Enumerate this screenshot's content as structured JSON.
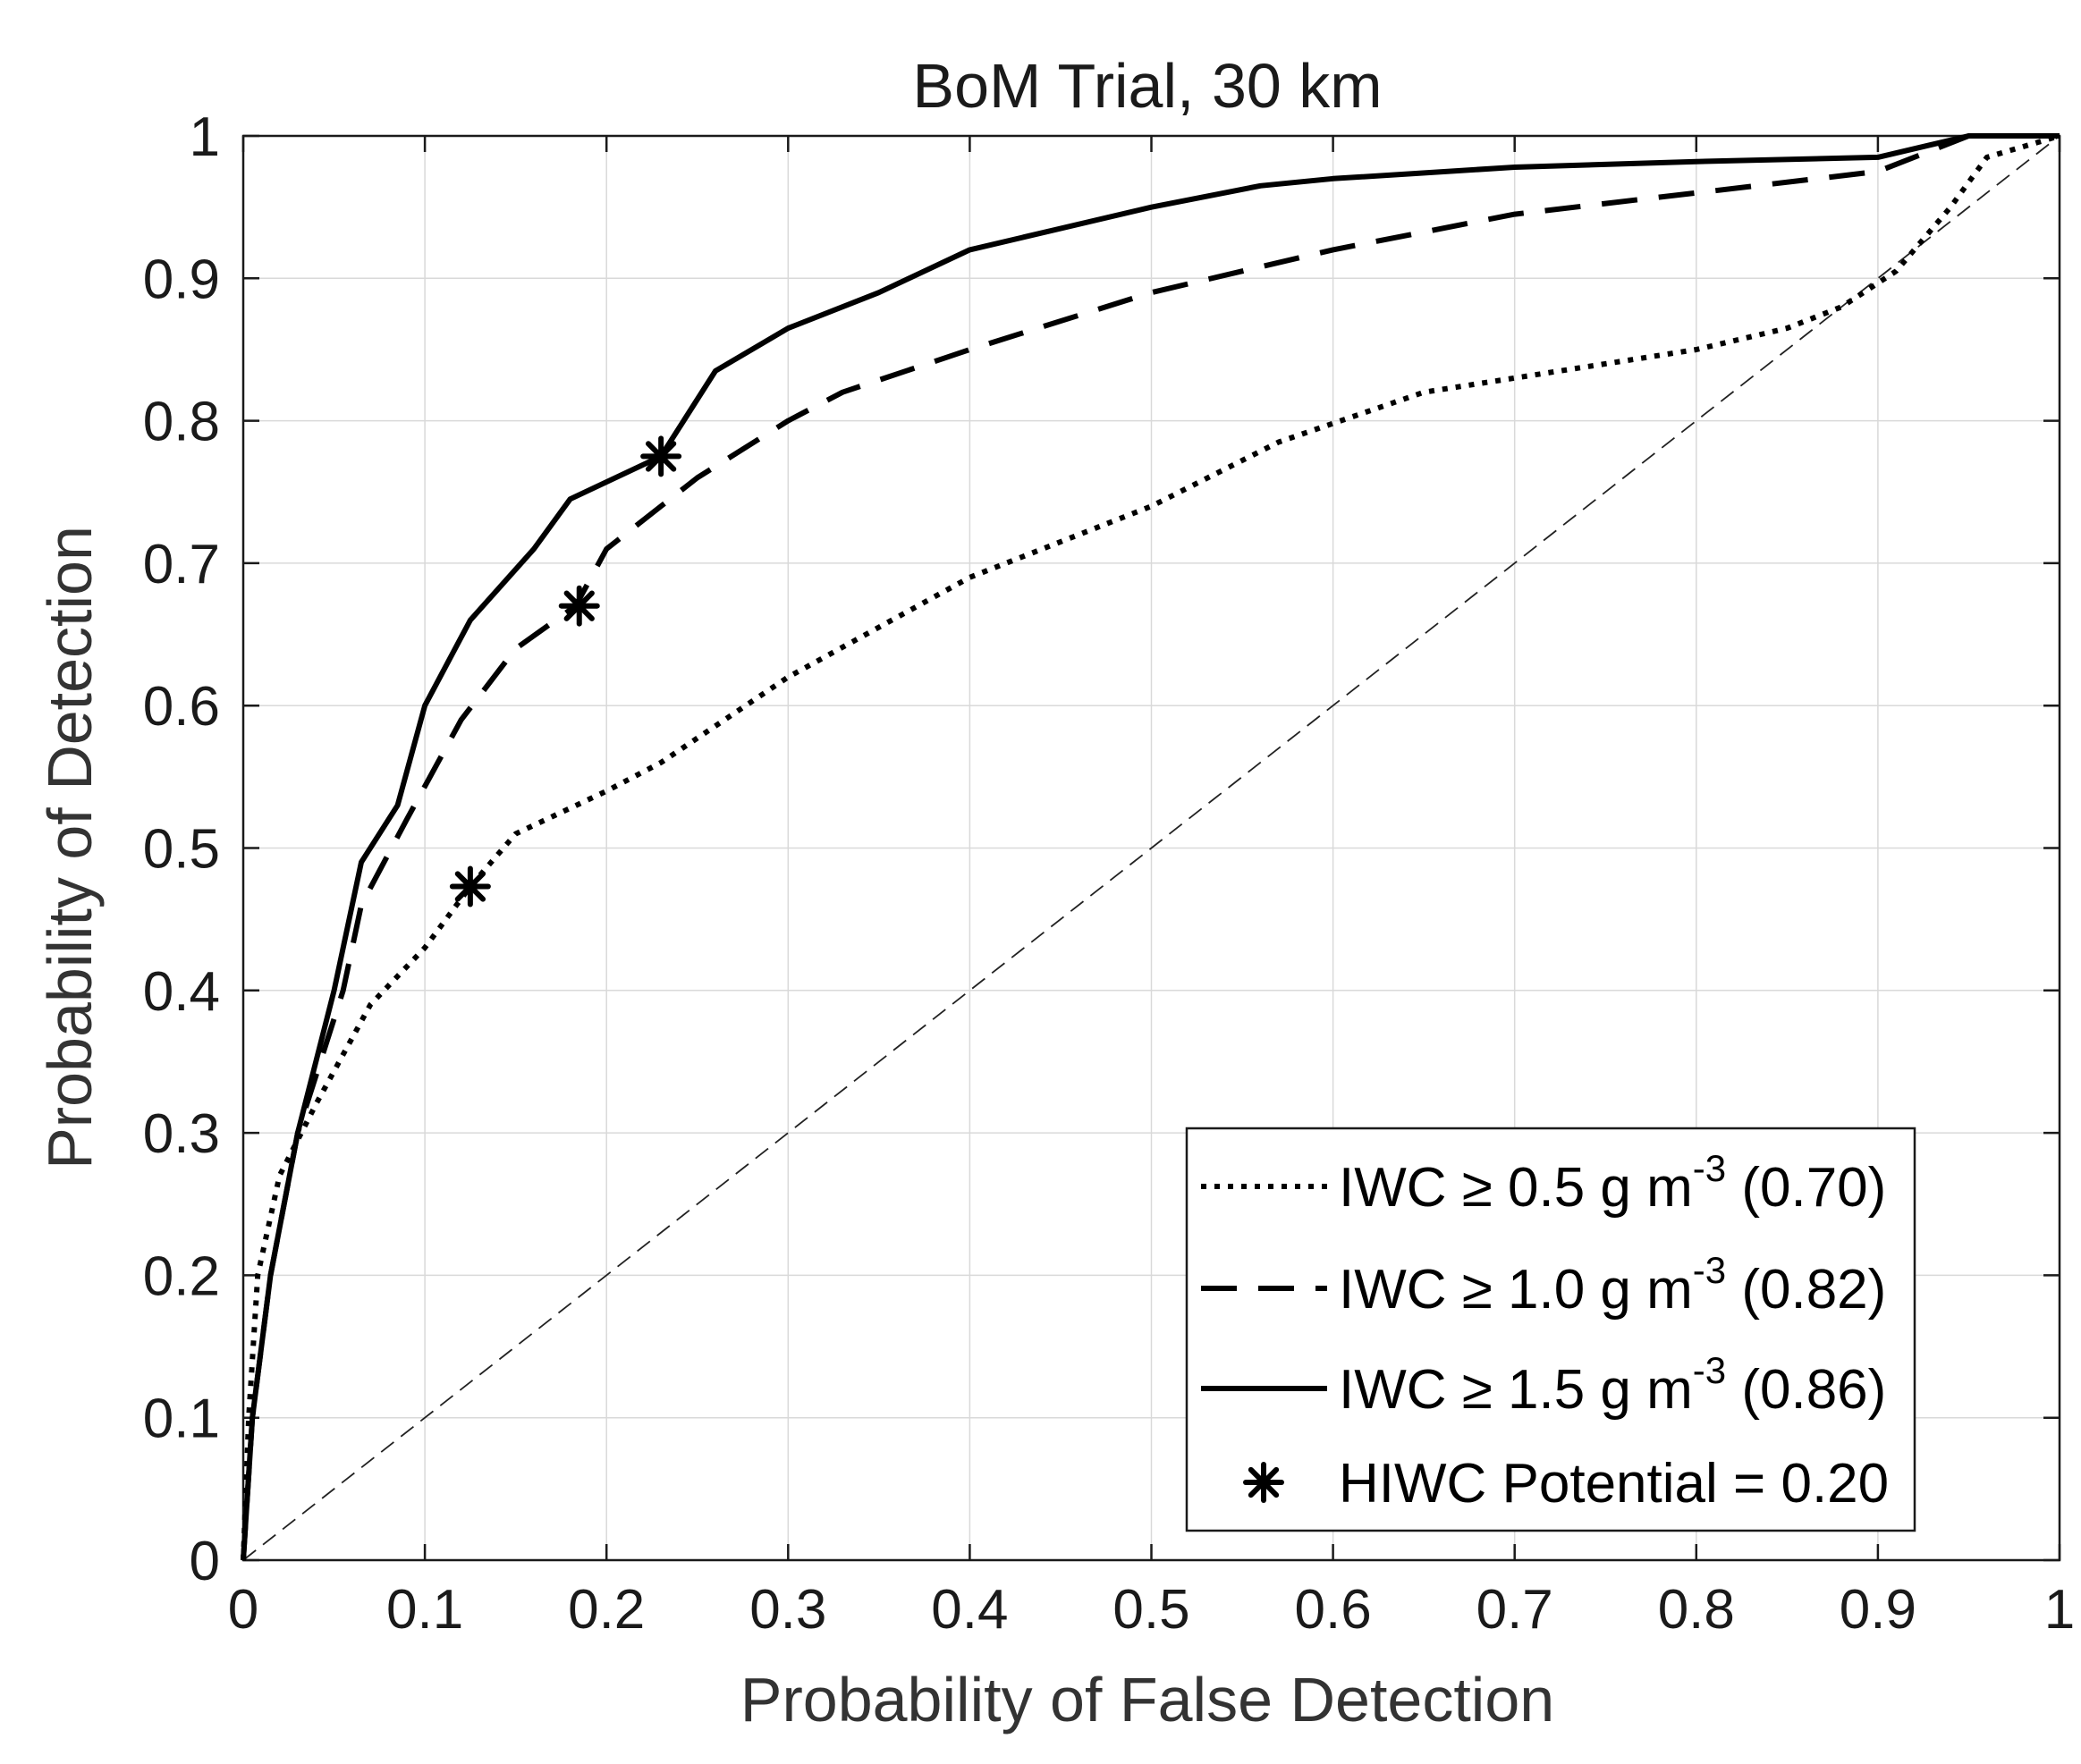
{
  "chart_data": {
    "type": "line",
    "title": "BoM Trial, 30 km",
    "xlabel": "Probability of False Detection",
    "ylabel": "Probability of Detection",
    "xlim": [
      0,
      1
    ],
    "ylim": [
      0,
      1
    ],
    "xticks": [
      "0",
      "0.1",
      "0.2",
      "0.3",
      "0.4",
      "0.5",
      "0.6",
      "0.7",
      "0.8",
      "0.9",
      "1"
    ],
    "yticks": [
      "0",
      "0.1",
      "0.2",
      "0.3",
      "0.4",
      "0.5",
      "0.6",
      "0.7",
      "0.8",
      "0.9",
      "1"
    ],
    "grid": true,
    "legend_position": "bottom-right",
    "series": [
      {
        "name": "IWC ≥ 0.5 g m-3 (0.70)",
        "legend": {
          "pre": "IWC ≥ 0.5 g m",
          "sup": "-3",
          "post": " (0.70)"
        },
        "style": "dotted",
        "points": [
          [
            0,
            0
          ],
          [
            0.003,
            0.1
          ],
          [
            0.008,
            0.2
          ],
          [
            0.02,
            0.27
          ],
          [
            0.04,
            0.32
          ],
          [
            0.07,
            0.39
          ],
          [
            0.1,
            0.43
          ],
          [
            0.125,
            0.473
          ],
          [
            0.15,
            0.51
          ],
          [
            0.2,
            0.54
          ],
          [
            0.23,
            0.56
          ],
          [
            0.3,
            0.62
          ],
          [
            0.4,
            0.69
          ],
          [
            0.5,
            0.74
          ],
          [
            0.57,
            0.785
          ],
          [
            0.65,
            0.82
          ],
          [
            0.7,
            0.83
          ],
          [
            0.8,
            0.85
          ],
          [
            0.85,
            0.865
          ],
          [
            0.88,
            0.88
          ],
          [
            0.91,
            0.905
          ],
          [
            0.94,
            0.95
          ],
          [
            0.96,
            0.985
          ],
          [
            1,
            1
          ]
        ]
      },
      {
        "name": "IWC ≥ 1.0 g m-3 (0.82)",
        "legend": {
          "pre": "IWC ≥ 1.0 g m",
          "sup": "-3",
          "post": " (0.82)"
        },
        "style": "dashed",
        "points": [
          [
            0,
            0
          ],
          [
            0.005,
            0.1
          ],
          [
            0.015,
            0.2
          ],
          [
            0.03,
            0.3
          ],
          [
            0.055,
            0.4
          ],
          [
            0.065,
            0.46
          ],
          [
            0.09,
            0.52
          ],
          [
            0.12,
            0.59
          ],
          [
            0.15,
            0.64
          ],
          [
            0.183,
            0.67
          ],
          [
            0.2,
            0.71
          ],
          [
            0.23,
            0.74
          ],
          [
            0.25,
            0.76
          ],
          [
            0.3,
            0.8
          ],
          [
            0.33,
            0.82
          ],
          [
            0.4,
            0.85
          ],
          [
            0.5,
            0.89
          ],
          [
            0.6,
            0.92
          ],
          [
            0.7,
            0.945
          ],
          [
            0.8,
            0.96
          ],
          [
            0.9,
            0.975
          ],
          [
            0.93,
            0.99
          ],
          [
            0.95,
            1
          ],
          [
            1,
            1
          ]
        ]
      },
      {
        "name": "IWC ≥ 1.5 g m-3 (0.86)",
        "legend": {
          "pre": "IWC ≥ 1.5 g m",
          "sup": "-3",
          "post": " (0.86)"
        },
        "style": "solid",
        "points": [
          [
            0,
            0
          ],
          [
            0.005,
            0.1
          ],
          [
            0.015,
            0.2
          ],
          [
            0.03,
            0.3
          ],
          [
            0.05,
            0.4
          ],
          [
            0.065,
            0.49
          ],
          [
            0.085,
            0.53
          ],
          [
            0.1,
            0.6
          ],
          [
            0.125,
            0.66
          ],
          [
            0.16,
            0.71
          ],
          [
            0.18,
            0.745
          ],
          [
            0.23,
            0.775
          ],
          [
            0.26,
            0.835
          ],
          [
            0.3,
            0.865
          ],
          [
            0.35,
            0.89
          ],
          [
            0.4,
            0.92
          ],
          [
            0.5,
            0.95
          ],
          [
            0.56,
            0.965
          ],
          [
            0.6,
            0.97
          ],
          [
            0.7,
            0.978
          ],
          [
            0.8,
            0.982
          ],
          [
            0.9,
            0.985
          ],
          [
            0.95,
            1
          ],
          [
            1,
            1
          ]
        ]
      }
    ],
    "markers": {
      "name": "HIWC Potential = 0.20",
      "symbol": "asterisk",
      "points": [
        [
          0.125,
          0.473
        ],
        [
          0.185,
          0.67
        ],
        [
          0.23,
          0.775
        ]
      ]
    },
    "reference_line": {
      "style": "thin-dashed",
      "points": [
        [
          0,
          0
        ],
        [
          1,
          1
        ]
      ]
    }
  }
}
